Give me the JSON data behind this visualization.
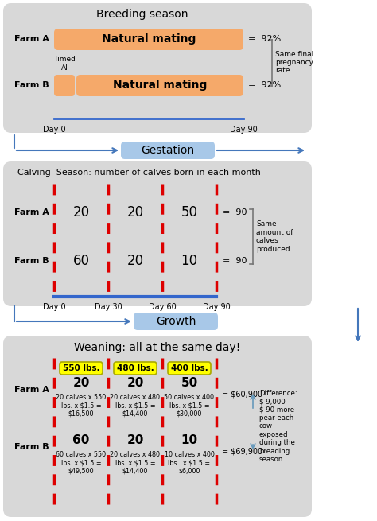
{
  "bg_color": "#ffffff",
  "panel_color": "#d8d8d8",
  "orange_bar": "#f5a96a",
  "blue_box": "#a8c8e8",
  "yellow_box": "#ffff00",
  "red_dash": "#dd0000",
  "blue_line": "#3366cc",
  "blue_arrow": "#4477bb",
  "breeding_title": "Breeding season",
  "farm_a_bar_label": "Natural mating",
  "farm_b_bar2_label": "Natural mating",
  "pct_a": "=  92%",
  "pct_b": "=  92%",
  "same_preg": "Same final\npregnancy\nrate",
  "day0": "Day 0",
  "day90_breed": "Day 90",
  "calving_title": "Calving  Season: number of calves born in each month",
  "farm_a_calves": [
    20,
    20,
    50
  ],
  "farm_b_calves": [
    60,
    20,
    10
  ],
  "total_a": "=  90",
  "total_b": "=  90",
  "same_calves": "Same\namount of\ncalves\nproduced",
  "day_labels": [
    "Day 0",
    "Day 30",
    "Day 60",
    "Day 90"
  ],
  "gestation_label": "Gestation",
  "growth_label": "Growth",
  "weaning_title": "Weaning: all at the same day!",
  "weights": [
    "550 lbs.",
    "480 lbs.",
    "400 lbs."
  ],
  "farm_a_counts": [
    20,
    20,
    50
  ],
  "farm_b_counts": [
    60,
    20,
    10
  ],
  "farm_a_calcs": [
    "20 calves x 550\nlbs. x $1.5 =\n$16,500",
    "20 calves x 480\nlbs. x $1.5 =\n$14,400",
    "50 calves x 400\nlbs. x $1.5 =\n$30,000"
  ],
  "farm_b_calcs": [
    "60 calves x 550\nlbs. x $1.5 =\n$49,500",
    "20 calves x 480\nlbs. x $1.5 =\n$14,400",
    "10 calves x 400\nlbs.. x $1.5 =\n$6,000"
  ],
  "total_farm_a": "= $60,900",
  "total_farm_b": "= $69,900",
  "difference_text": "Difference:\n$ 9,000\n$ 90 more\npear each\ncow\nexposed\nduring the\nbreading\nseason."
}
